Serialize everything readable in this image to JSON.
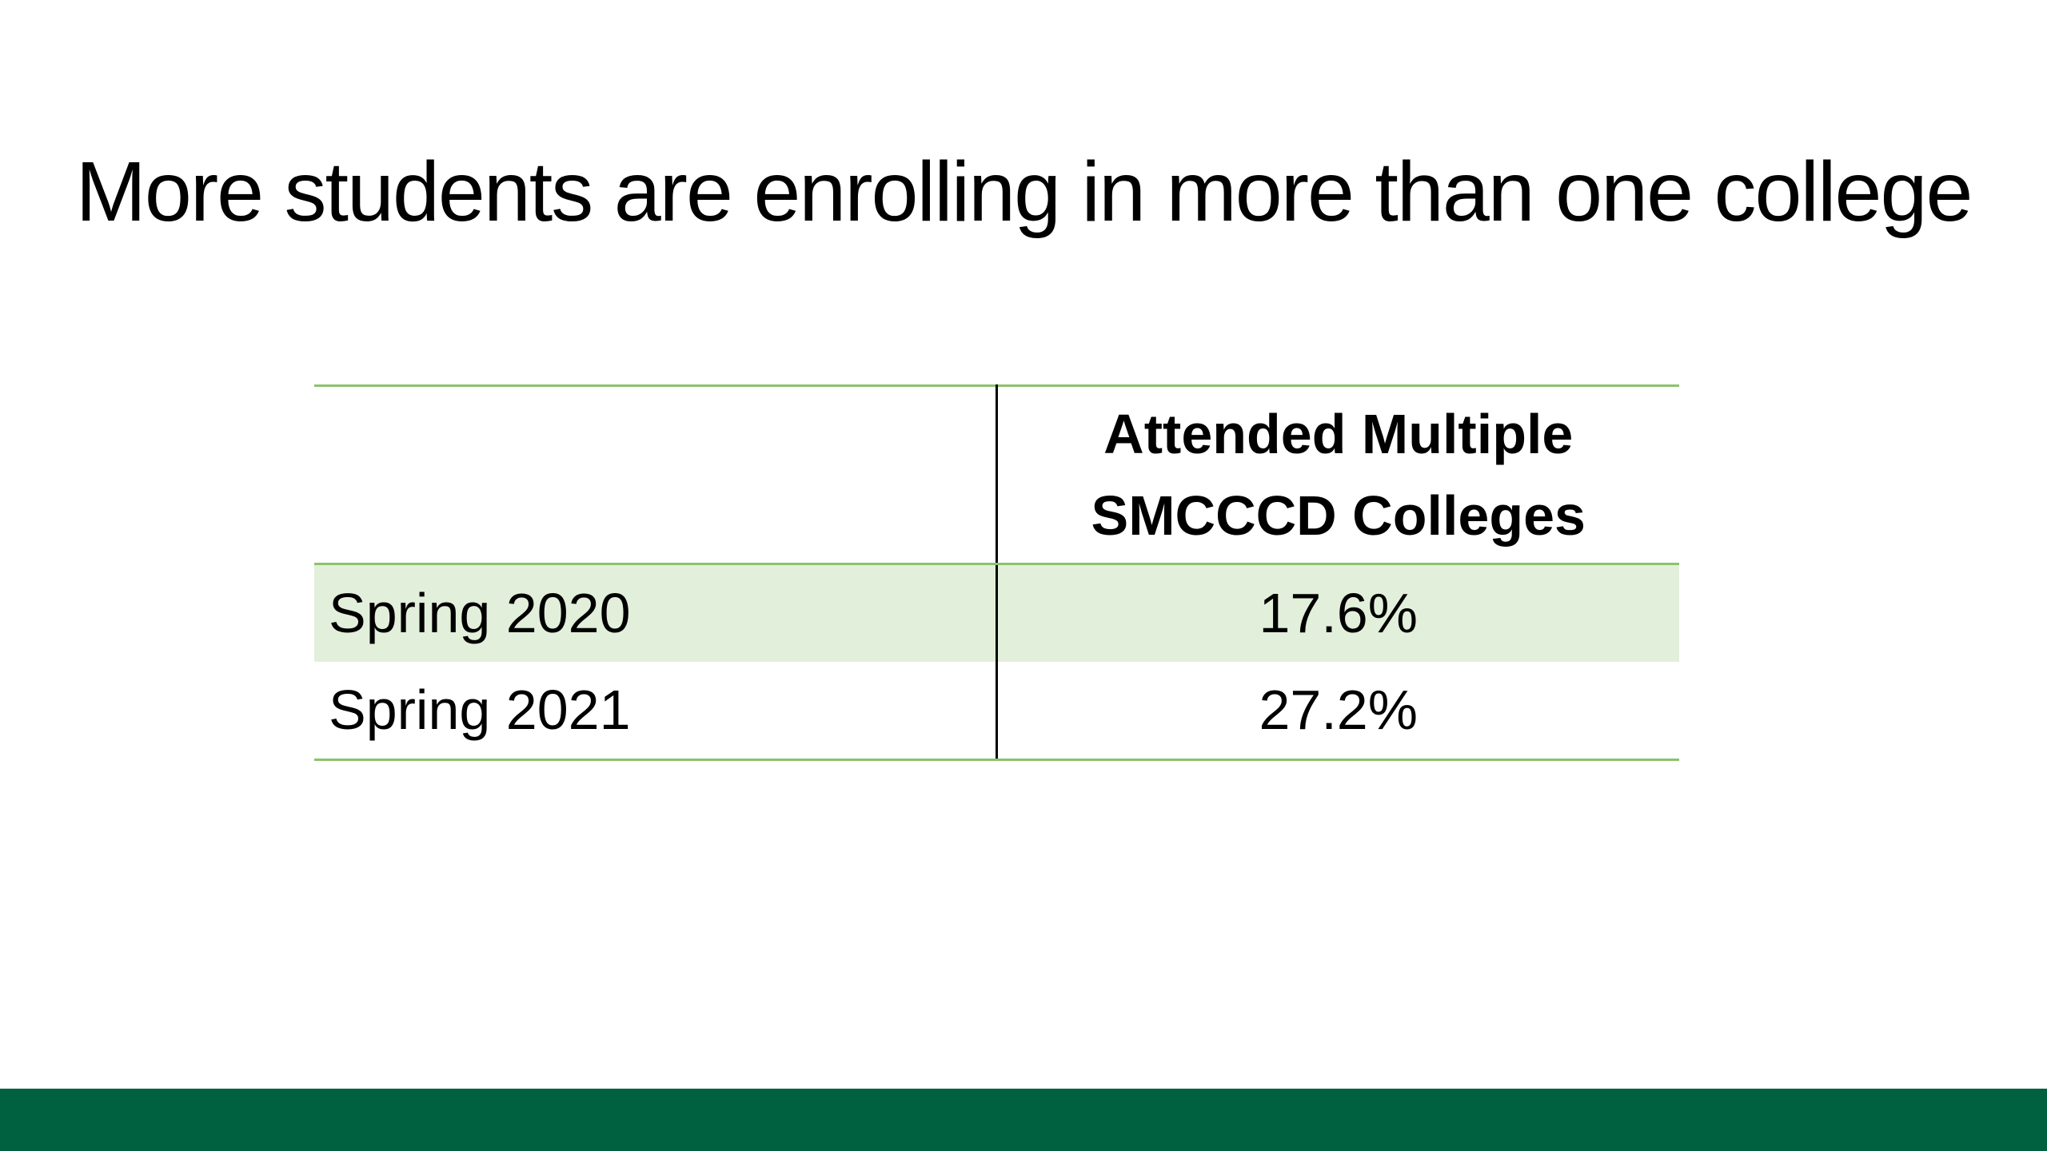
{
  "slide": {
    "title": "More students are enrolling in more than one college"
  },
  "table": {
    "headers": [
      "",
      "Attended Multiple SMCCCD Colleges"
    ],
    "rows": [
      {
        "label": "Spring 2020",
        "value": "17.6%"
      },
      {
        "label": "Spring 2021",
        "value": "27.2%"
      }
    ]
  },
  "colors": {
    "accent_green": "#8cc26c",
    "row_shade": "#e2efda",
    "footer_bar": "#006140"
  }
}
